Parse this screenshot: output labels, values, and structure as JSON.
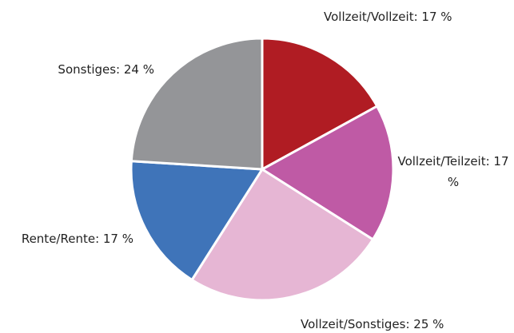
{
  "chart_data": {
    "type": "pie",
    "values": [
      17,
      17,
      25,
      17,
      24
    ],
    "value_labels": [
      "Vollzeit/Vollzeit: 17 %",
      "Vollzeit/Teilzeit: 17 %",
      "Vollzeit/Sonstiges: 25 %",
      "Rente/Rente: 17 %",
      "Sonstiges: 24 %"
    ],
    "colors": [
      "#b01c23",
      "#bf5aa5",
      "#e6b6d4",
      "#3f74b9",
      "#949598"
    ]
  }
}
